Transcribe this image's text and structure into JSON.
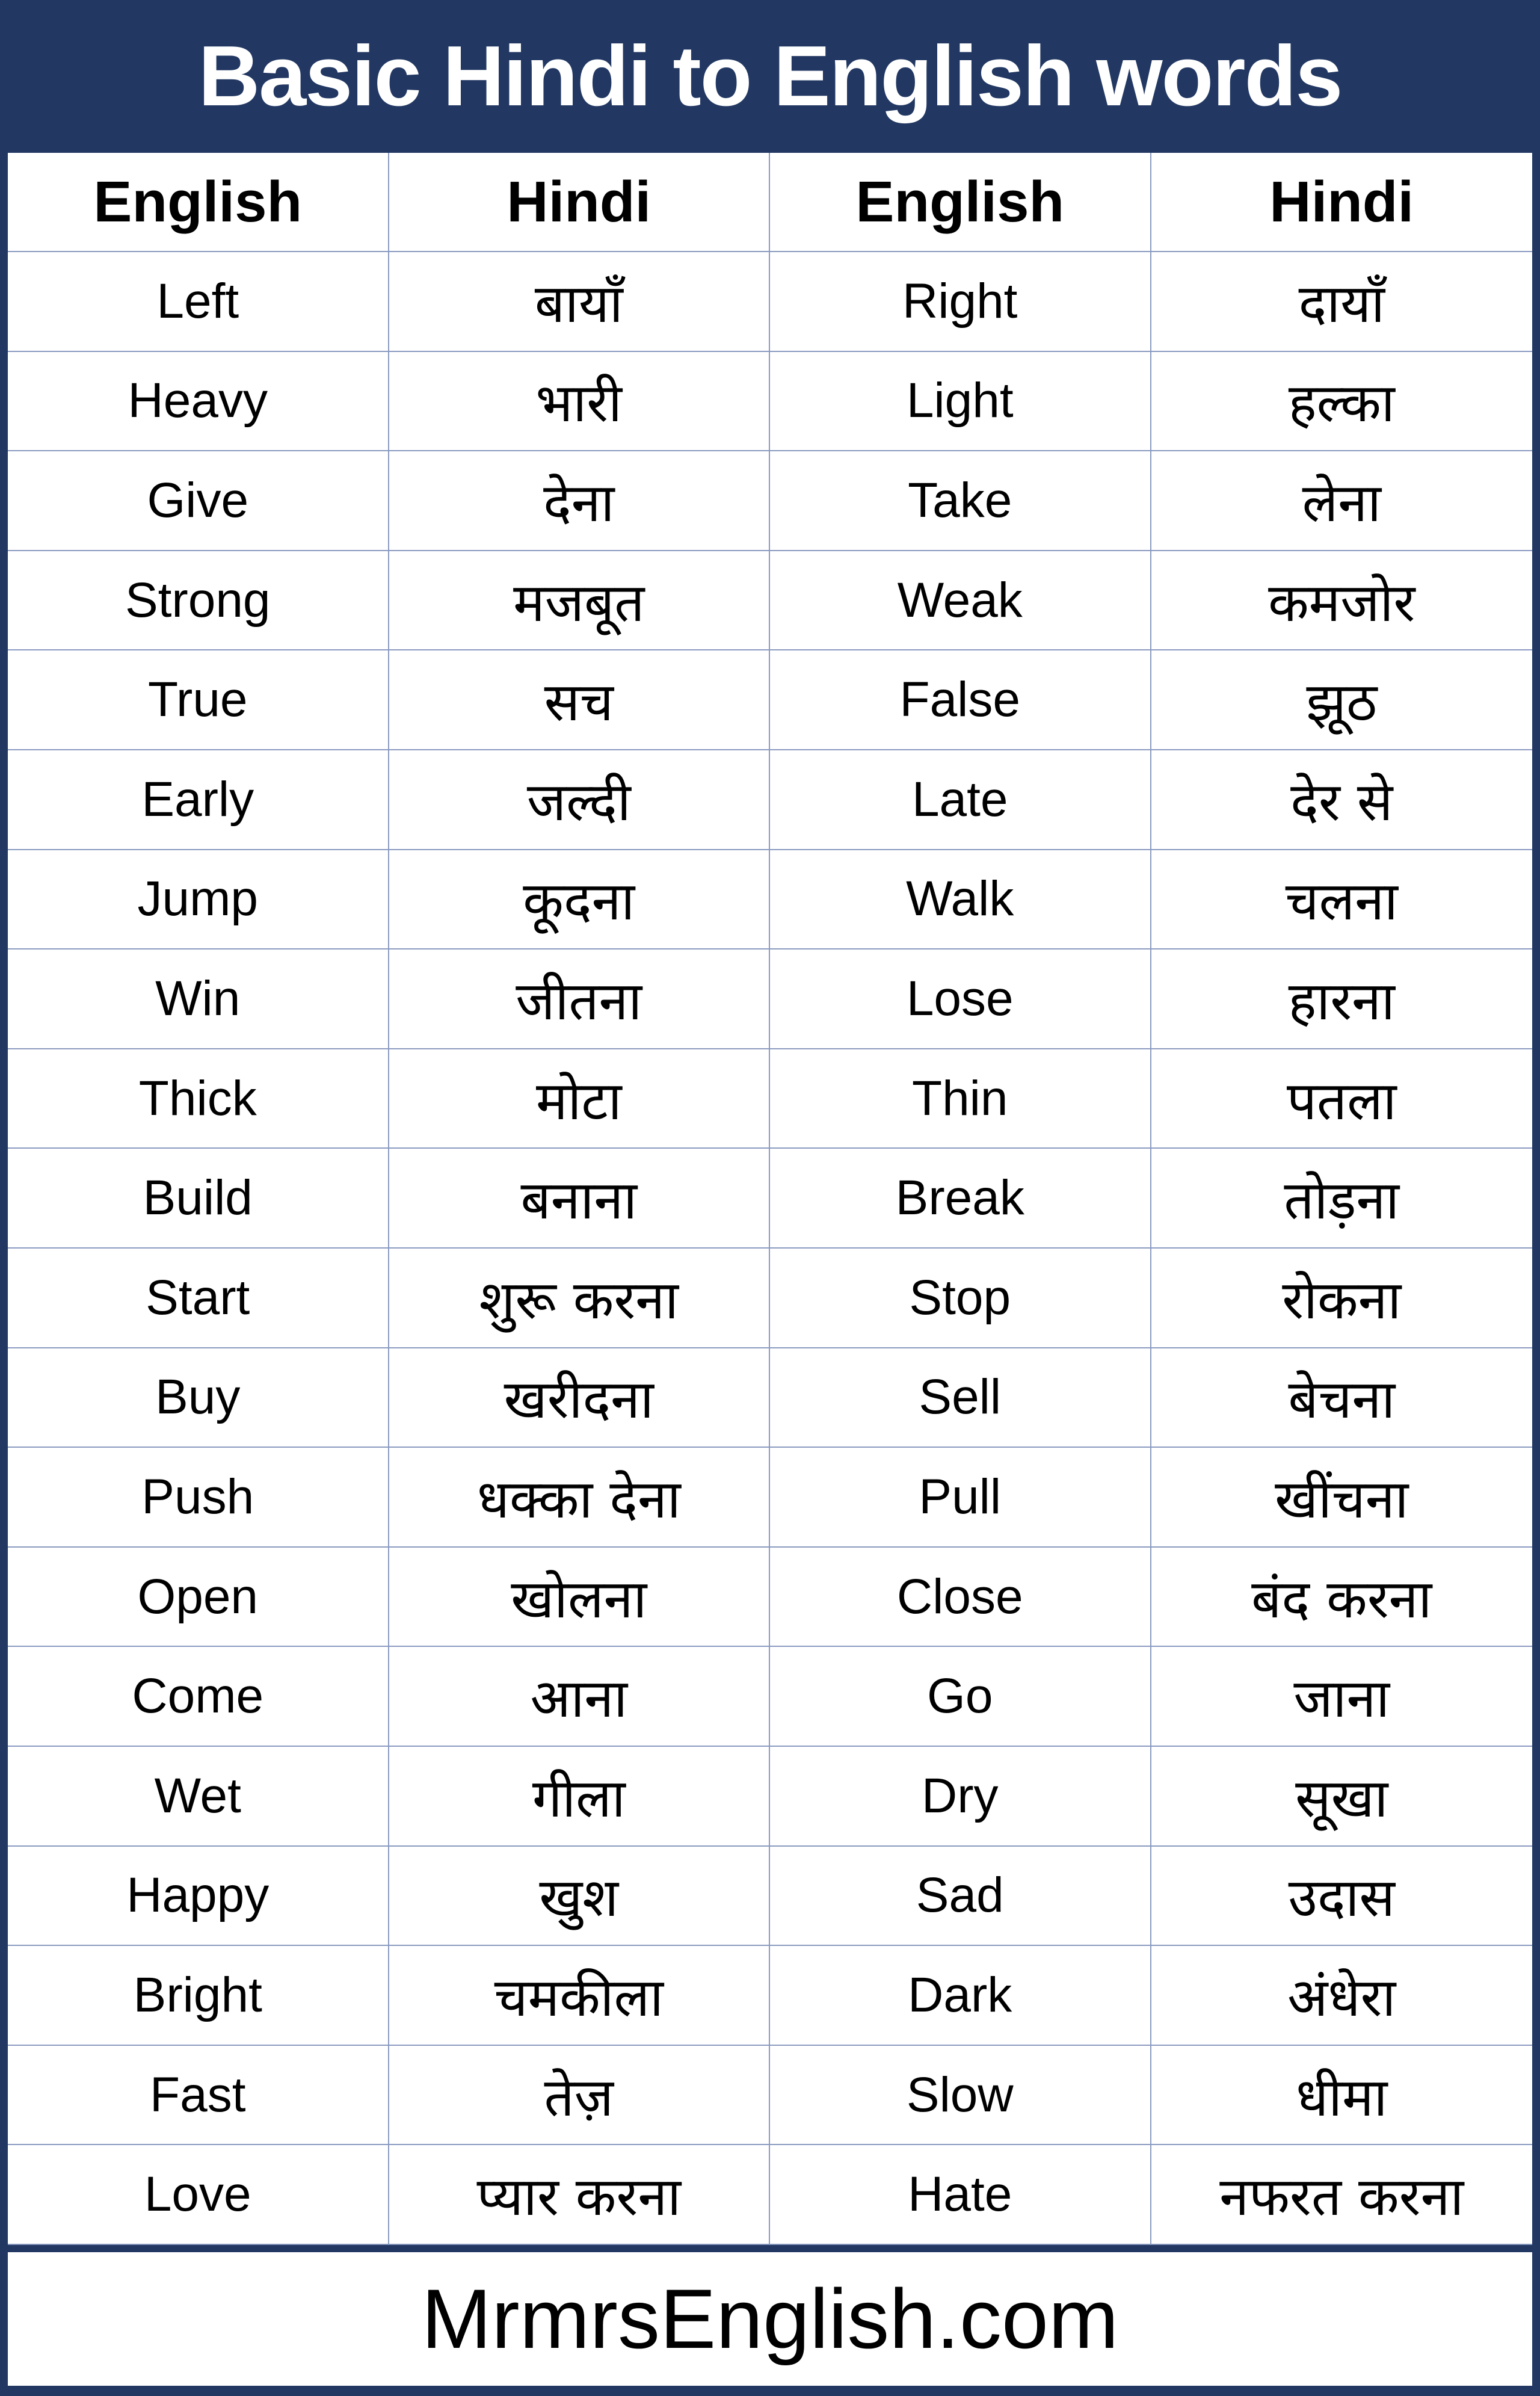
{
  "title": "Basic Hindi to English words",
  "headers": [
    "English",
    "Hindi",
    "English",
    "Hindi"
  ],
  "rows": [
    [
      "Left",
      "बायाँ",
      "Right",
      "दायाँ"
    ],
    [
      "Heavy",
      "भारी",
      "Light",
      "हल्का"
    ],
    [
      "Give",
      "देना",
      "Take",
      "लेना"
    ],
    [
      "Strong",
      "मजबूत",
      "Weak",
      "कमजोर"
    ],
    [
      "True",
      "सच",
      "False",
      "झूठ"
    ],
    [
      "Early",
      "जल्दी",
      "Late",
      "देर से"
    ],
    [
      "Jump",
      "कूदना",
      "Walk",
      "चलना"
    ],
    [
      "Win",
      "जीतना",
      "Lose",
      "हारना"
    ],
    [
      "Thick",
      "मोटा",
      "Thin",
      "पतला"
    ],
    [
      "Build",
      "बनाना",
      "Break",
      "तोड़ना"
    ],
    [
      "Start",
      "शुरू करना",
      "Stop",
      "रोकना"
    ],
    [
      "Buy",
      "खरीदना",
      "Sell",
      "बेचना"
    ],
    [
      "Push",
      "धक्का देना",
      "Pull",
      "खींचना"
    ],
    [
      "Open",
      "खोलना",
      "Close",
      "बंद करना"
    ],
    [
      "Come",
      "आना",
      "Go",
      "जाना"
    ],
    [
      "Wet",
      "गीला",
      "Dry",
      "सूखा"
    ],
    [
      "Happy",
      "खुश",
      "Sad",
      "उदास"
    ],
    [
      "Bright",
      "चमकीला",
      "Dark",
      "अंधेरा"
    ],
    [
      "Fast",
      "तेज़",
      "Slow",
      "धीमा"
    ],
    [
      "Love",
      "प्यार करना",
      "Hate",
      "नफरत करना"
    ]
  ],
  "footer": "MrmrsEnglish.com",
  "colors": {
    "frame": "#223863",
    "grid": "#8a9ac0"
  }
}
